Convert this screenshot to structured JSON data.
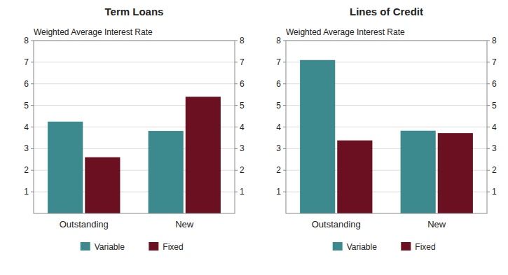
{
  "chart_data": [
    {
      "type": "bar",
      "title": "Term Loans",
      "ylabel": "Weighted Average Interest Rate",
      "categories": [
        "Outstanding",
        "New"
      ],
      "series": [
        {
          "name": "Variable",
          "color": "#3d8a8e",
          "values": [
            4.25,
            3.82
          ]
        },
        {
          "name": "Fixed",
          "color": "#6b1020",
          "values": [
            2.6,
            5.4
          ]
        }
      ],
      "ylim": [
        0,
        8
      ],
      "yticks": [
        1,
        2,
        3,
        4,
        5,
        6,
        7,
        8
      ],
      "y2lim": [
        0,
        8
      ],
      "y2ticks": [
        1,
        2,
        3,
        4,
        5,
        6,
        7,
        8
      ],
      "grid": true,
      "legend": "bottom"
    },
    {
      "type": "bar",
      "title": "Lines of Credit",
      "ylabel": "Weighted Average Interest Rate",
      "categories": [
        "Outstanding",
        "New"
      ],
      "series": [
        {
          "name": "Variable",
          "color": "#3d8a8e",
          "values": [
            7.1,
            3.83
          ]
        },
        {
          "name": "Fixed",
          "color": "#6b1020",
          "values": [
            3.38,
            3.72
          ]
        }
      ],
      "ylim": [
        0,
        8
      ],
      "yticks": [
        1,
        2,
        3,
        4,
        5,
        6,
        7,
        8
      ],
      "y2lim": [
        0,
        8
      ],
      "y2ticks": [
        1,
        2,
        3,
        4,
        5,
        6,
        7,
        8
      ],
      "grid": true,
      "legend": "bottom"
    }
  ]
}
